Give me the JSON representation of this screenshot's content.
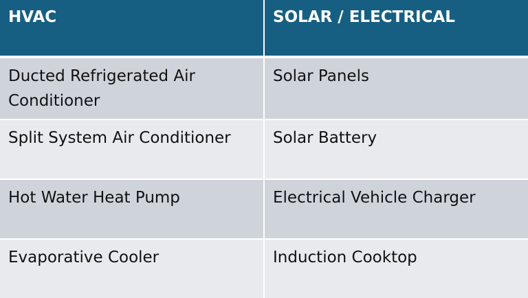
{
  "table": {
    "headers": [
      "HVAC",
      "SOLAR / ELECTRICAL"
    ],
    "rows": [
      [
        "Ducted Refrigerated Air Conditioner",
        "Solar Panels"
      ],
      [
        "Split System Air Conditioner",
        "Solar Battery"
      ],
      [
        "Hot Water Heat Pump",
        "Electrical Vehicle Charger"
      ],
      [
        "Evaporative Cooler",
        "Induction Cooktop"
      ]
    ]
  },
  "colors": {
    "header_bg": "#175f82",
    "row_dark": "#cfd4db",
    "row_light": "#e8eaed"
  }
}
